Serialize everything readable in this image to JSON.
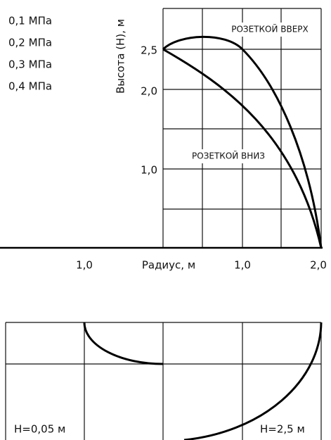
{
  "legend": [
    "0,1  МПа",
    "0,2  МПа",
    "0,3  МПа",
    "0,4  МПа"
  ],
  "top_chart": {
    "y_axis_title": "Высота (Н), м",
    "x_axis_title": "Радиус, м",
    "y_labels": [
      "2,5",
      "2,0",
      "1,0"
    ],
    "x_labels": [
      "1,0",
      "1,0",
      "2,0"
    ],
    "annotations": [
      "РОЗЕТКОЙ ВВЕРХ",
      "РОЗЕТКОЙ ВНИЗ"
    ]
  },
  "bottom_chart": {
    "labels": [
      "Н=0,05 м",
      "Н=2,5 м"
    ]
  }
}
